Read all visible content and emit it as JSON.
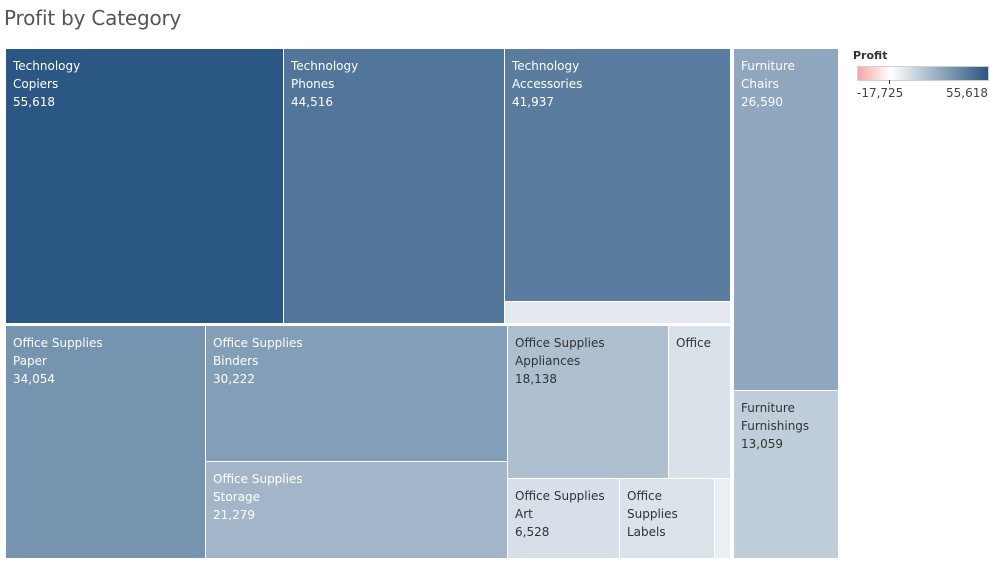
{
  "title": "Profit by Category",
  "chart_data": {
    "type": "treemap",
    "title": "Profit by Category",
    "measure": "Profit",
    "color_scale": {
      "min": -17725,
      "max": 55618,
      "min_label": "-17,725",
      "max_label": "55,618",
      "colors": [
        "#f6a6a6",
        "#ffffff",
        "#2a5783"
      ]
    },
    "items": [
      {
        "category": "Technology",
        "sub_category": "Copiers",
        "value": 55618,
        "label": "55,618",
        "lines": [
          "Technology",
          "Copiers",
          "55,618"
        ]
      },
      {
        "category": "Technology",
        "sub_category": "Phones",
        "value": 44516,
        "label": "44,516",
        "lines": [
          "Technology",
          "Phones",
          "44,516"
        ]
      },
      {
        "category": "Technology",
        "sub_category": "Accessories",
        "value": 41937,
        "label": "41,937",
        "lines": [
          "Technology",
          "Accessories",
          "41,937"
        ]
      },
      {
        "category": "Technology",
        "sub_category": "",
        "value": 3000,
        "label": "",
        "lines": []
      },
      {
        "category": "Furniture",
        "sub_category": "Chairs",
        "value": 26590,
        "label": "26,590",
        "lines": [
          "Furniture",
          "Chairs",
          "26,590"
        ]
      },
      {
        "category": "Furniture",
        "sub_category": "Furnishings",
        "value": 13059,
        "label": "13,059",
        "lines": [
          "Furniture",
          "Furnishings",
          "13,059"
        ]
      },
      {
        "category": "Office Supplies",
        "sub_category": "Paper",
        "value": 34054,
        "label": "34,054",
        "lines": [
          "Office Supplies",
          "Paper",
          "34,054"
        ]
      },
      {
        "category": "Office Supplies",
        "sub_category": "Binders",
        "value": 30222,
        "label": "30,222",
        "lines": [
          "Office Supplies",
          "Binders",
          "30,222"
        ]
      },
      {
        "category": "Office Supplies",
        "sub_category": "Storage",
        "value": 21279,
        "label": "21,279",
        "lines": [
          "Office Supplies",
          "Storage",
          "21,279"
        ]
      },
      {
        "category": "Office Supplies",
        "sub_category": "Appliances",
        "value": 18138,
        "label": "18,138",
        "lines": [
          "Office Supplies",
          "Appliances",
          "18,138"
        ]
      },
      {
        "category": "Office Supplies",
        "sub_category": "",
        "value": 6000,
        "label": "",
        "lines": [
          "Office"
        ]
      },
      {
        "category": "Office Supplies",
        "sub_category": "Art",
        "value": 6528,
        "label": "6,528",
        "lines": [
          "Office Supplies",
          "Art",
          "6,528"
        ]
      },
      {
        "category": "Office Supplies",
        "sub_category": "Labels",
        "value": 5546,
        "label": "",
        "lines": [
          "Office",
          "Supplies",
          "Labels"
        ]
      },
      {
        "category": "Office Supplies",
        "sub_category": "",
        "value": 1000,
        "label": "",
        "lines": []
      }
    ]
  }
}
